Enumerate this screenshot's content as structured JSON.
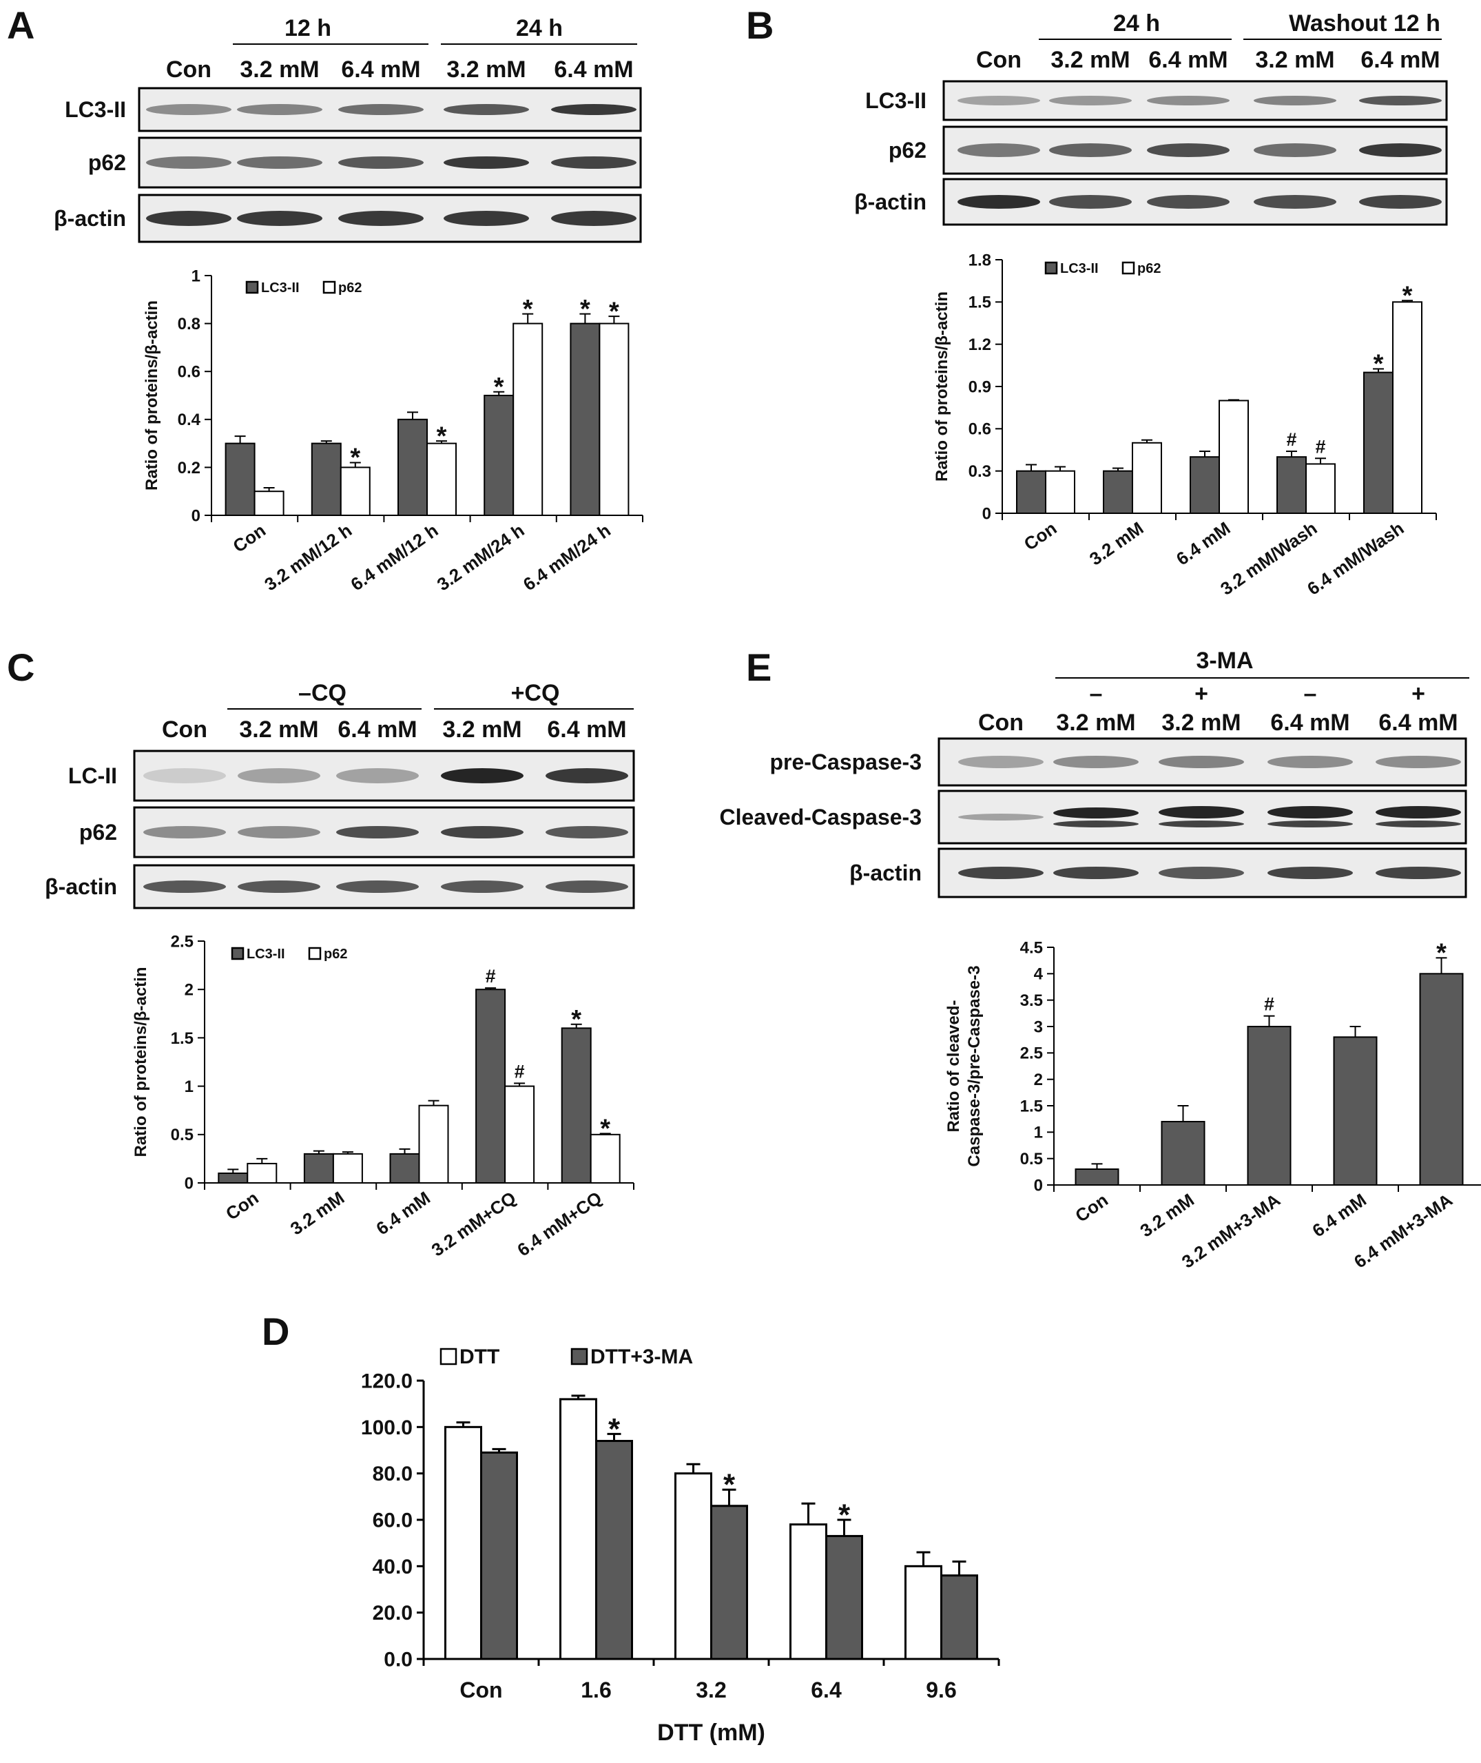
{
  "colors": {
    "dark_bar": "#5a5a5a",
    "light_bar": "#ffffff",
    "stroke": "#000000"
  },
  "panels": {
    "A": {
      "letter": "A",
      "blot": {
        "groups": [
          {
            "label": "12 h"
          },
          {
            "label": "24 h"
          }
        ],
        "lanes": [
          "Con",
          "3.2 mM",
          "6.4 mM",
          "3.2 mM",
          "6.4 mM"
        ],
        "rows": [
          "LC3-II",
          "p62",
          "β-actin"
        ]
      }
    },
    "B": {
      "letter": "B",
      "blot": {
        "groups": [
          {
            "label": "24 h"
          },
          {
            "label": "Washout 12 h"
          }
        ],
        "lanes": [
          "Con",
          "3.2 mM",
          "6.4 mM",
          "3.2 mM",
          "6.4 mM"
        ],
        "rows": [
          "LC3-II",
          "p62",
          "β-actin"
        ]
      }
    },
    "C": {
      "letter": "C",
      "blot": {
        "groups": [
          {
            "label": "–CQ"
          },
          {
            "label": "+CQ"
          }
        ],
        "lanes": [
          "Con",
          "3.2 mM",
          "6.4 mM",
          "3.2 mM",
          "6.4 mM"
        ],
        "rows": [
          "LC-II",
          "p62",
          "β-actin"
        ]
      }
    },
    "E": {
      "letter": "E",
      "blot": {
        "group_label": "3-MA",
        "signs": [
          "–",
          "+",
          "–",
          "+"
        ],
        "lanes": [
          "Con",
          "3.2 mM",
          "3.2 mM",
          "6.4 mM",
          "6.4 mM"
        ],
        "rows": [
          "pre-Caspase-3",
          "Cleaved-Caspase-3",
          "β-actin"
        ]
      }
    },
    "D": {
      "letter": "D"
    }
  },
  "chart_data": [
    {
      "panel": "A",
      "type": "bar",
      "categories": [
        "Con",
        "3.2 mM/12 h",
        "6.4 mM/12 h",
        "3.2 mM/24 h",
        "6.4 mM/24 h"
      ],
      "series": [
        {
          "name": "LC3-II",
          "values": [
            0.3,
            0.3,
            0.4,
            0.5,
            0.8
          ],
          "errors": [
            0.03,
            0.01,
            0.03,
            0.015,
            0.04
          ],
          "marks": [
            "",
            "",
            "",
            "*",
            "*"
          ]
        },
        {
          "name": "p62",
          "values": [
            0.1,
            0.2,
            0.3,
            0.8,
            0.8
          ],
          "errors": [
            0.015,
            0.02,
            0.01,
            0.04,
            0.03
          ],
          "marks": [
            "",
            "*",
            "*",
            "*",
            "*"
          ]
        }
      ],
      "ylabel": "Ratio of proteins/β-actin",
      "yticks": [
        "0",
        "0.2",
        "0.4",
        "0.6",
        "0.8",
        "1"
      ],
      "ylim": [
        0,
        1
      ],
      "legend": "top-left"
    },
    {
      "panel": "B",
      "type": "bar",
      "categories": [
        "Con",
        "3.2 mM",
        "6.4 mM",
        "3.2 mM/Wash",
        "6.4 mM/Wash"
      ],
      "series": [
        {
          "name": "LC3-II",
          "values": [
            0.3,
            0.3,
            0.4,
            0.4,
            1.0
          ],
          "errors": [
            0.045,
            0.02,
            0.04,
            0.04,
            0.025
          ],
          "marks": [
            "",
            "",
            "",
            "#",
            "*"
          ]
        },
        {
          "name": "p62",
          "values": [
            0.3,
            0.5,
            0.8,
            0.35,
            1.5
          ],
          "errors": [
            0.03,
            0.02,
            0.005,
            0.04,
            0.01
          ],
          "marks": [
            "",
            "",
            "",
            "#",
            "*"
          ]
        }
      ],
      "ylabel": "Ratio of proteins/β-actin",
      "yticks": [
        "0",
        "0.3",
        "0.6",
        "0.9",
        "1.2",
        "1.5",
        "1.8"
      ],
      "ylim": [
        0,
        1.8
      ],
      "legend": "top-left"
    },
    {
      "panel": "C",
      "type": "bar",
      "categories": [
        "Con",
        "3.2 mM",
        "6.4 mM",
        "3.2 mM+CQ",
        "6.4 mM+CQ"
      ],
      "series": [
        {
          "name": "LC3-II",
          "values": [
            0.1,
            0.3,
            0.3,
            2.0,
            1.6
          ],
          "errors": [
            0.04,
            0.03,
            0.05,
            0.015,
            0.04
          ],
          "marks": [
            "",
            "",
            "",
            "#",
            "*"
          ]
        },
        {
          "name": "p62",
          "values": [
            0.2,
            0.3,
            0.8,
            1.0,
            0.5
          ],
          "errors": [
            0.05,
            0.02,
            0.05,
            0.03,
            0.01
          ],
          "marks": [
            "",
            "",
            "",
            "#",
            "*"
          ]
        }
      ],
      "ylabel": "Ratio of proteins/β-actin",
      "yticks": [
        "0",
        "0.5",
        "1",
        "1.5",
        "2",
        "2.5"
      ],
      "ylim": [
        0,
        2.5
      ],
      "legend": "top-left"
    },
    {
      "panel": "E",
      "type": "bar",
      "categories": [
        "Con",
        "3.2 mM",
        "3.2 mM+3-MA",
        "6.4 mM",
        "6.4 mM+3-MA"
      ],
      "series": [
        {
          "name": "",
          "values": [
            0.3,
            1.2,
            3.0,
            2.8,
            4.0
          ],
          "errors": [
            0.1,
            0.3,
            0.2,
            0.2,
            0.3
          ],
          "marks": [
            "",
            "",
            "#",
            "",
            "*"
          ]
        }
      ],
      "ylabel_lines": [
        "Ratio of cleaved-",
        "Caspase-3/pre-Caspase-3"
      ],
      "yticks": [
        "0",
        "0.5",
        "1",
        "1.5",
        "2",
        "2.5",
        "3",
        "3.5",
        "4",
        "4.5"
      ],
      "ylim": [
        0,
        4.5
      ]
    },
    {
      "panel": "D",
      "type": "bar",
      "categories": [
        "Con",
        "1.6",
        "3.2",
        "6.4",
        "9.6"
      ],
      "series": [
        {
          "name": "DTT",
          "values": [
            100,
            112,
            80,
            58,
            40
          ],
          "errors": [
            2,
            1.5,
            4,
            9,
            6
          ],
          "marks": [
            "",
            "",
            "",
            "",
            ""
          ]
        },
        {
          "name": "DTT+3-MA",
          "values": [
            89,
            94,
            66,
            53,
            36
          ],
          "errors": [
            1.5,
            3,
            7,
            7,
            6
          ],
          "marks": [
            "",
            "*",
            "*",
            "*",
            ""
          ]
        }
      ],
      "xlabel": "DTT (mM)",
      "yticks": [
        "0.0",
        "20.0",
        "40.0",
        "60.0",
        "80.0",
        "100.0",
        "120.0"
      ],
      "ylim": [
        0,
        120
      ],
      "legend": "top"
    }
  ]
}
